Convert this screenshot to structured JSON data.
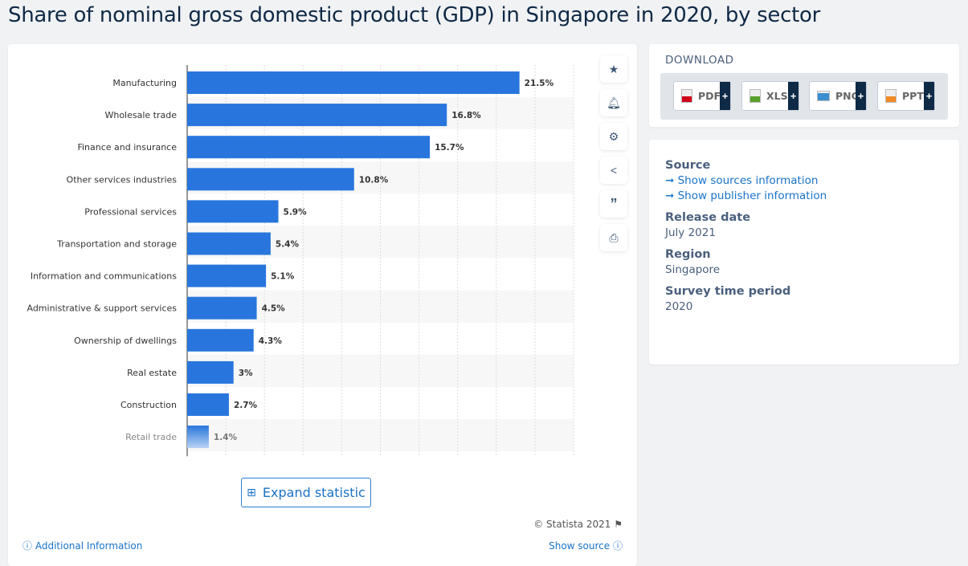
{
  "title": "Share of nominal gross domestic product (GDP) in Singapore in 2020, by sector",
  "chart_data": {
    "type": "bar",
    "orientation": "horizontal",
    "categories": [
      "Manufacturing",
      "Wholesale trade",
      "Finance and insurance",
      "Other services industries",
      "Professional services",
      "Transportation and storage",
      "Information and communications",
      "Administrative & support services",
      "Ownership of dwellings",
      "Real estate",
      "Construction",
      "Retail trade"
    ],
    "values": [
      21.5,
      16.8,
      15.7,
      10.8,
      5.9,
      5.4,
      5.1,
      4.5,
      4.3,
      3,
      2.7,
      1.4
    ],
    "labels": [
      "21.5%",
      "16.8%",
      "15.7%",
      "10.8%",
      "5.9%",
      "5.4%",
      "5.1%",
      "4.5%",
      "4.3%",
      "3%",
      "2.7%",
      "1.4%"
    ],
    "xlim": [
      0,
      25
    ],
    "grid": true,
    "color": "#2876dd"
  },
  "actions": [
    "star-icon",
    "bell-icon",
    "gear-icon",
    "share-icon",
    "quote-icon",
    "print-icon"
  ],
  "expand_label": "Expand statistic",
  "copyright": "© Statista 2021",
  "additional_info": "Additional Information",
  "show_source": "Show source",
  "download": {
    "title": "DOWNLOAD",
    "buttons": [
      {
        "label": "PDF",
        "color": "#d0021b"
      },
      {
        "label": "XLS",
        "color": "#5aa02c"
      },
      {
        "label": "PNG",
        "color": "#3b8fd0"
      },
      {
        "label": "PPT",
        "color": "#f08a24"
      }
    ],
    "plus": "+"
  },
  "info": {
    "source_label": "Source",
    "source_link1": "➞ Show sources information",
    "source_link2": "➞ Show publisher information",
    "release_label": "Release date",
    "release_value": "July 2021",
    "region_label": "Region",
    "region_value": "Singapore",
    "period_label": "Survey time period",
    "period_value": "2020"
  }
}
